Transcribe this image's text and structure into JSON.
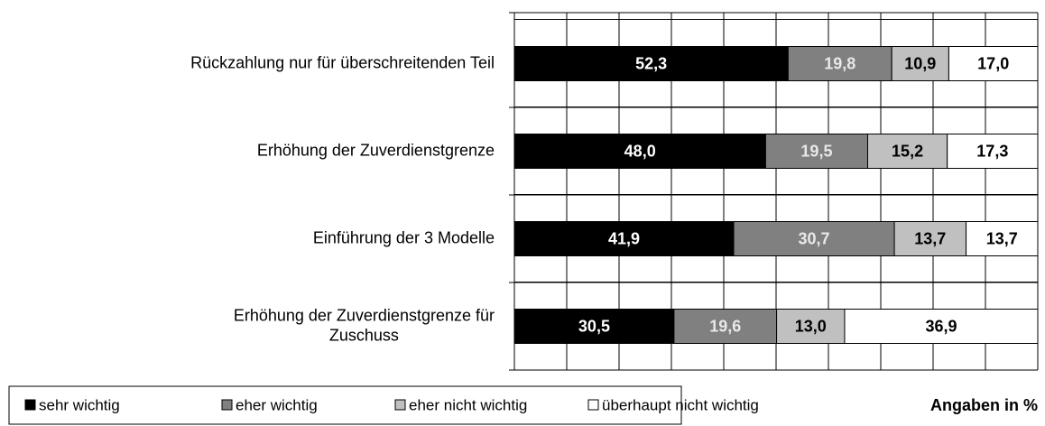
{
  "chart_data": {
    "type": "stacked-bar-horizontal",
    "categories": [
      "Rückzahlung nur für überschreitenden Teil",
      "Erhöhung der Zuverdienstgrenze",
      "Einführung der 3 Modelle",
      "Erhöhung der Zuverdienstgrenze für\nZuschuss"
    ],
    "series": [
      {
        "name": "sehr wichtig",
        "color": "#000000",
        "values": [
          52.3,
          48.0,
          41.9,
          30.5
        ],
        "value_labels": [
          "52,3",
          "48,0",
          "41,9",
          "30,5"
        ]
      },
      {
        "name": "eher wichtig",
        "color": "#808080",
        "values": [
          19.8,
          19.5,
          30.7,
          19.6
        ],
        "value_labels": [
          "19,8",
          "19,5",
          "30,7",
          "19,6"
        ]
      },
      {
        "name": "eher nicht wichtig",
        "color": "#c0c0c0",
        "values": [
          10.9,
          15.2,
          13.7,
          13.0
        ],
        "value_labels": [
          "10,9",
          "15,2",
          "13,7",
          "13,0"
        ]
      },
      {
        "name": "überhaupt nicht wichtig",
        "color": "#ffffff",
        "values": [
          17.0,
          17.3,
          13.7,
          36.9
        ],
        "value_labels": [
          "17,0",
          "17,3",
          "13,7",
          "36,9"
        ]
      }
    ],
    "xlim": [
      0,
      100
    ],
    "annotation": "Angaben in %",
    "legend": "bottom"
  }
}
